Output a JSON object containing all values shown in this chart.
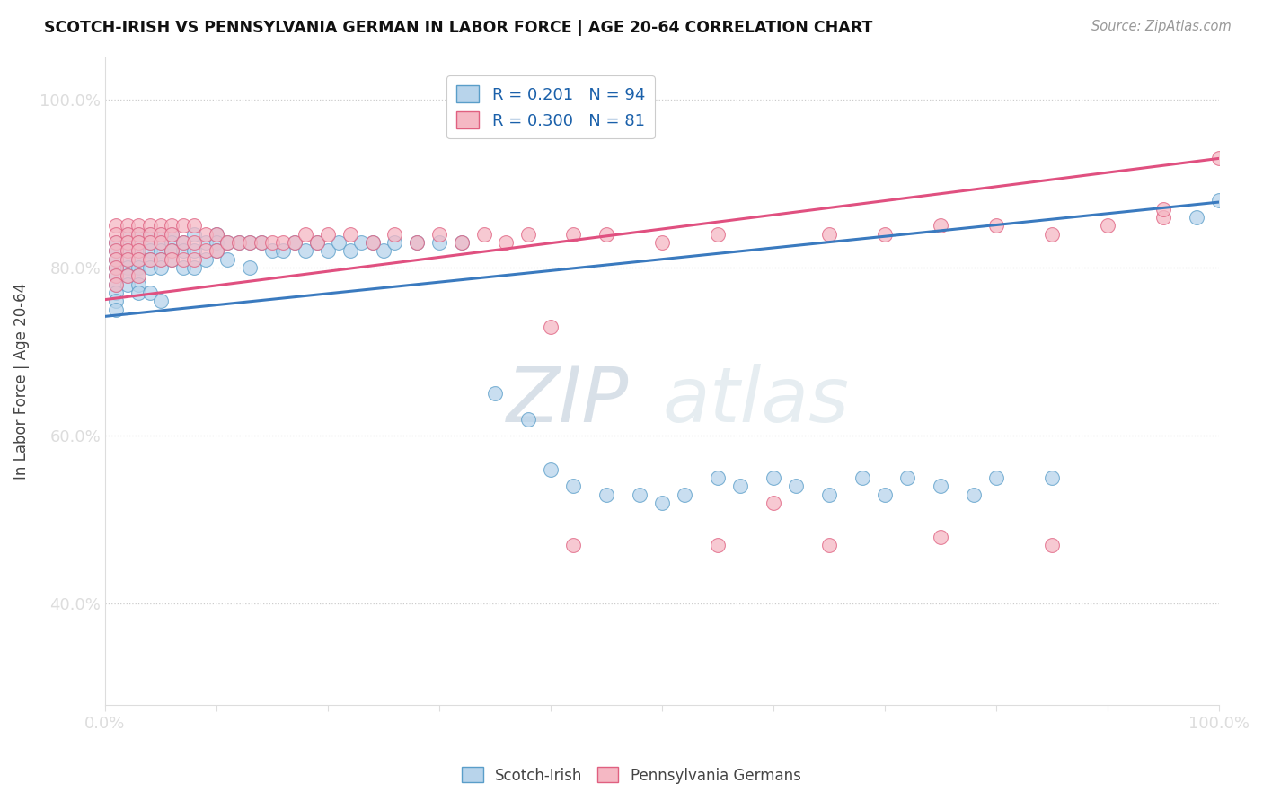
{
  "title": "SCOTCH-IRISH VS PENNSYLVANIA GERMAN IN LABOR FORCE | AGE 20-64 CORRELATION CHART",
  "source": "Source: ZipAtlas.com",
  "ylabel": "In Labor Force | Age 20-64",
  "xlim": [
    0.0,
    1.0
  ],
  "ylim": [
    0.28,
    1.05
  ],
  "yticks": [
    0.4,
    0.6,
    0.8,
    1.0
  ],
  "ytick_labels": [
    "40.0%",
    "60.0%",
    "80.0%",
    "100.0%"
  ],
  "xtick_labels": [
    "0.0%",
    "",
    "",
    "",
    "",
    "",
    "",
    "",
    "",
    "",
    "100.0%"
  ],
  "legend_blue_R": "0.201",
  "legend_blue_N": "94",
  "legend_pink_R": "0.300",
  "legend_pink_N": "81",
  "blue_color_face": "#b8d4eb",
  "blue_color_edge": "#5a9ec9",
  "pink_color_face": "#f5b8c4",
  "pink_color_edge": "#e06080",
  "blue_line_color": "#3a7abf",
  "pink_line_color": "#e05080",
  "watermark_text": "ZIPatlas",
  "blue_trend_y0": 0.742,
  "blue_trend_y1": 0.878,
  "pink_trend_y0": 0.762,
  "pink_trend_y1": 0.93,
  "blue_x": [
    0.01,
    0.01,
    0.01,
    0.01,
    0.01,
    0.01,
    0.01,
    0.01,
    0.01,
    0.02,
    0.02,
    0.02,
    0.02,
    0.02,
    0.02,
    0.02,
    0.03,
    0.03,
    0.03,
    0.03,
    0.03,
    0.03,
    0.03,
    0.03,
    0.04,
    0.04,
    0.04,
    0.04,
    0.04,
    0.04,
    0.05,
    0.05,
    0.05,
    0.05,
    0.05,
    0.05,
    0.06,
    0.06,
    0.06,
    0.06,
    0.07,
    0.07,
    0.07,
    0.08,
    0.08,
    0.08,
    0.09,
    0.09,
    0.1,
    0.1,
    0.1,
    0.11,
    0.11,
    0.12,
    0.13,
    0.13,
    0.14,
    0.15,
    0.16,
    0.17,
    0.18,
    0.19,
    0.2,
    0.21,
    0.22,
    0.23,
    0.24,
    0.25,
    0.26,
    0.28,
    0.3,
    0.32,
    0.35,
    0.38,
    0.4,
    0.42,
    0.45,
    0.48,
    0.5,
    0.52,
    0.55,
    0.57,
    0.6,
    0.62,
    0.65,
    0.68,
    0.7,
    0.72,
    0.75,
    0.78,
    0.8,
    0.85,
    0.98,
    1.0
  ],
  "blue_y": [
    0.83,
    0.82,
    0.81,
    0.8,
    0.79,
    0.78,
    0.77,
    0.76,
    0.75,
    0.84,
    0.83,
    0.82,
    0.81,
    0.8,
    0.79,
    0.78,
    0.84,
    0.83,
    0.82,
    0.81,
    0.8,
    0.79,
    0.78,
    0.77,
    0.84,
    0.83,
    0.82,
    0.81,
    0.8,
    0.77,
    0.84,
    0.83,
    0.82,
    0.81,
    0.8,
    0.76,
    0.84,
    0.83,
    0.82,
    0.81,
    0.83,
    0.82,
    0.8,
    0.84,
    0.82,
    0.8,
    0.83,
    0.81,
    0.84,
    0.83,
    0.82,
    0.83,
    0.81,
    0.83,
    0.83,
    0.8,
    0.83,
    0.82,
    0.82,
    0.83,
    0.82,
    0.83,
    0.82,
    0.83,
    0.82,
    0.83,
    0.83,
    0.82,
    0.83,
    0.83,
    0.83,
    0.83,
    0.65,
    0.62,
    0.56,
    0.54,
    0.53,
    0.53,
    0.52,
    0.53,
    0.55,
    0.54,
    0.55,
    0.54,
    0.53,
    0.55,
    0.53,
    0.55,
    0.54,
    0.53,
    0.55,
    0.55,
    0.86,
    0.88
  ],
  "pink_x": [
    0.01,
    0.01,
    0.01,
    0.01,
    0.01,
    0.01,
    0.01,
    0.01,
    0.02,
    0.02,
    0.02,
    0.02,
    0.02,
    0.02,
    0.03,
    0.03,
    0.03,
    0.03,
    0.03,
    0.03,
    0.04,
    0.04,
    0.04,
    0.04,
    0.05,
    0.05,
    0.05,
    0.05,
    0.06,
    0.06,
    0.06,
    0.06,
    0.07,
    0.07,
    0.07,
    0.08,
    0.08,
    0.08,
    0.09,
    0.09,
    0.1,
    0.1,
    0.11,
    0.12,
    0.13,
    0.14,
    0.15,
    0.16,
    0.17,
    0.18,
    0.19,
    0.2,
    0.22,
    0.24,
    0.26,
    0.28,
    0.3,
    0.32,
    0.34,
    0.36,
    0.38,
    0.4,
    0.42,
    0.45,
    0.5,
    0.55,
    0.6,
    0.65,
    0.7,
    0.75,
    0.8,
    0.85,
    0.9,
    0.95,
    1.0,
    0.42,
    0.55,
    0.65,
    0.75,
    0.85,
    0.95
  ],
  "pink_y": [
    0.85,
    0.84,
    0.83,
    0.82,
    0.81,
    0.8,
    0.79,
    0.78,
    0.85,
    0.84,
    0.83,
    0.82,
    0.81,
    0.79,
    0.85,
    0.84,
    0.83,
    0.82,
    0.81,
    0.79,
    0.85,
    0.84,
    0.83,
    0.81,
    0.85,
    0.84,
    0.83,
    0.81,
    0.85,
    0.84,
    0.82,
    0.81,
    0.85,
    0.83,
    0.81,
    0.85,
    0.83,
    0.81,
    0.84,
    0.82,
    0.84,
    0.82,
    0.83,
    0.83,
    0.83,
    0.83,
    0.83,
    0.83,
    0.83,
    0.84,
    0.83,
    0.84,
    0.84,
    0.83,
    0.84,
    0.83,
    0.84,
    0.83,
    0.84,
    0.83,
    0.84,
    0.73,
    0.84,
    0.84,
    0.83,
    0.84,
    0.52,
    0.84,
    0.84,
    0.85,
    0.85,
    0.84,
    0.85,
    0.86,
    0.93,
    0.47,
    0.47,
    0.47,
    0.48,
    0.47,
    0.87
  ],
  "figsize": [
    14.06,
    8.92
  ],
  "dpi": 100
}
